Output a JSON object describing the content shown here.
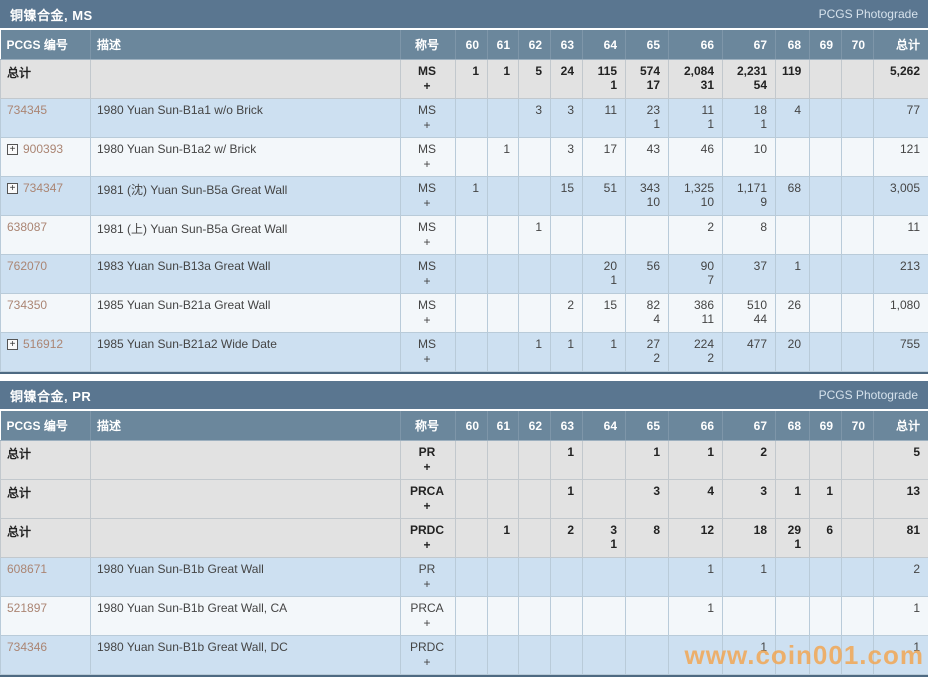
{
  "watermark": "www.coin001.com",
  "columns": {
    "pcgs": "PCGS 编号",
    "desc": "描述",
    "designation": "称号",
    "grades": [
      "60",
      "61",
      "62",
      "63",
      "64",
      "65",
      "66",
      "67",
      "68",
      "69",
      "70"
    ],
    "total": "总计"
  },
  "tables": [
    {
      "title": "铜镍合金, MS",
      "photograde_label": "PCGS Photograde",
      "rows": [
        {
          "type": "total",
          "pcgs": "总计",
          "expand": false,
          "desc": "",
          "designation": [
            "MS",
            "+"
          ],
          "grades": [
            [
              "1"
            ],
            [
              "1"
            ],
            [
              "5"
            ],
            [
              "24"
            ],
            [
              "115",
              "1"
            ],
            [
              "574",
              "17"
            ],
            [
              "2,084",
              "31"
            ],
            [
              "2,231",
              "54"
            ],
            [
              "119"
            ],
            [],
            []
          ],
          "total": "5,262"
        },
        {
          "type": "data",
          "pcgs": "734345",
          "expand": false,
          "desc": "1980 Yuan Sun-B1a1 w/o Brick",
          "designation": [
            "MS",
            "+"
          ],
          "grades": [
            [],
            [],
            [
              "3"
            ],
            [
              "3"
            ],
            [
              "11"
            ],
            [
              "23",
              "1"
            ],
            [
              "11",
              "1"
            ],
            [
              "18",
              "1"
            ],
            [
              "4"
            ],
            [],
            []
          ],
          "total": "77"
        },
        {
          "type": "data",
          "pcgs": "900393",
          "expand": true,
          "desc": "1980 Yuan Sun-B1a2 w/ Brick",
          "designation": [
            "MS",
            "+"
          ],
          "grades": [
            [],
            [
              "1"
            ],
            [],
            [
              "3"
            ],
            [
              "17"
            ],
            [
              "43"
            ],
            [
              "46"
            ],
            [
              "10"
            ],
            [],
            [],
            []
          ],
          "total": "121"
        },
        {
          "type": "data",
          "pcgs": "734347",
          "expand": true,
          "desc": "1981 (沈) Yuan Sun-B5a Great Wall",
          "designation": [
            "MS",
            "+"
          ],
          "grades": [
            [
              "1"
            ],
            [],
            [],
            [
              "15"
            ],
            [
              "51"
            ],
            [
              "343",
              "10"
            ],
            [
              "1,325",
              "10"
            ],
            [
              "1,171",
              "9"
            ],
            [
              "68"
            ],
            [],
            []
          ],
          "total": "3,005"
        },
        {
          "type": "data",
          "pcgs": "638087",
          "expand": false,
          "desc": "1981 (上) Yuan Sun-B5a Great Wall",
          "designation": [
            "MS",
            "+"
          ],
          "grades": [
            [],
            [],
            [
              "1"
            ],
            [],
            [],
            [],
            [
              "2"
            ],
            [
              "8"
            ],
            [],
            [],
            []
          ],
          "total": "11"
        },
        {
          "type": "data",
          "pcgs": "762070",
          "expand": false,
          "desc": "1983 Yuan Sun-B13a Great Wall",
          "designation": [
            "MS",
            "+"
          ],
          "grades": [
            [],
            [],
            [],
            [],
            [
              "20",
              "1"
            ],
            [
              "56"
            ],
            [
              "90",
              "7"
            ],
            [
              "37"
            ],
            [
              "1"
            ],
            [],
            []
          ],
          "total": "213"
        },
        {
          "type": "data",
          "pcgs": "734350",
          "expand": false,
          "desc": "1985 Yuan Sun-B21a Great Wall",
          "designation": [
            "MS",
            "+"
          ],
          "grades": [
            [],
            [],
            [],
            [
              "2"
            ],
            [
              "15"
            ],
            [
              "82",
              "4"
            ],
            [
              "386",
              "11"
            ],
            [
              "510",
              "44"
            ],
            [
              "26"
            ],
            [],
            []
          ],
          "total": "1,080"
        },
        {
          "type": "data",
          "pcgs": "516912",
          "expand": true,
          "desc": "1985 Yuan Sun-B21a2 Wide Date",
          "designation": [
            "MS",
            "+"
          ],
          "grades": [
            [],
            [],
            [
              "1"
            ],
            [
              "1"
            ],
            [
              "1"
            ],
            [
              "27",
              "2"
            ],
            [
              "224",
              "2"
            ],
            [
              "477"
            ],
            [
              "20"
            ],
            [],
            []
          ],
          "total": "755"
        }
      ]
    },
    {
      "title": "铜镍合金, PR",
      "photograde_label": "PCGS Photograde",
      "rows": [
        {
          "type": "total",
          "pcgs": "总计",
          "expand": false,
          "desc": "",
          "designation": [
            "PR",
            "+"
          ],
          "grades": [
            [],
            [],
            [],
            [
              "1"
            ],
            [],
            [
              "1"
            ],
            [
              "1"
            ],
            [
              "2"
            ],
            [],
            [],
            []
          ],
          "total": "5"
        },
        {
          "type": "total",
          "pcgs": "总计",
          "expand": false,
          "desc": "",
          "designation": [
            "PRCA",
            "+"
          ],
          "grades": [
            [],
            [],
            [],
            [
              "1"
            ],
            [],
            [
              "3"
            ],
            [
              "4"
            ],
            [
              "3"
            ],
            [
              "1"
            ],
            [
              "1"
            ],
            []
          ],
          "total": "13"
        },
        {
          "type": "total",
          "pcgs": "总计",
          "expand": false,
          "desc": "",
          "designation": [
            "PRDC",
            "+"
          ],
          "grades": [
            [],
            [
              "1"
            ],
            [],
            [
              "2"
            ],
            [
              "3",
              "1"
            ],
            [
              "8"
            ],
            [
              "12"
            ],
            [
              "18"
            ],
            [
              "29",
              "1"
            ],
            [
              "6"
            ],
            []
          ],
          "total": "81"
        },
        {
          "type": "data",
          "pcgs": "608671",
          "expand": false,
          "desc": "1980 Yuan Sun-B1b Great Wall",
          "designation": [
            "PR",
            "+"
          ],
          "grades": [
            [],
            [],
            [],
            [],
            [],
            [],
            [
              "1"
            ],
            [
              "1"
            ],
            [],
            [],
            []
          ],
          "total": "2"
        },
        {
          "type": "data",
          "pcgs": "521897",
          "expand": false,
          "desc": "1980 Yuan Sun-B1b Great Wall, CA",
          "designation": [
            "PRCA",
            "+"
          ],
          "grades": [
            [],
            [],
            [],
            [],
            [],
            [],
            [
              "1"
            ],
            [],
            [],
            [],
            []
          ],
          "total": "1"
        },
        {
          "type": "data",
          "pcgs": "734346",
          "expand": false,
          "desc": "1980 Yuan Sun-B1b Great Wall, DC",
          "designation": [
            "PRDC",
            "+"
          ],
          "grades": [
            [],
            [],
            [],
            [],
            [],
            [],
            [],
            [
              "1"
            ],
            [],
            [],
            []
          ],
          "total": "1"
        }
      ]
    }
  ]
}
